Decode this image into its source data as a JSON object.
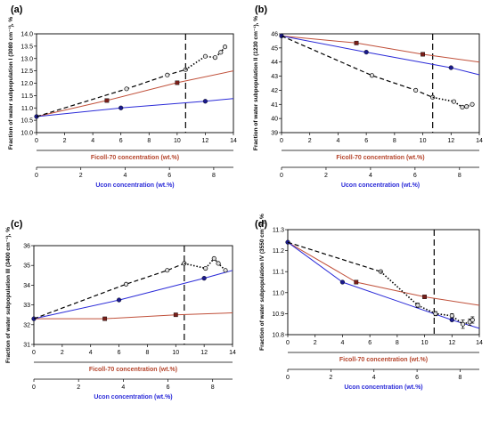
{
  "colors": {
    "ficoll_line": "#c0503a",
    "ficoll_marker": "#7a1f1a",
    "ucon_line": "#2b2bd8",
    "ucon_marker": "#1a1a8c",
    "water_line": "#000000",
    "water_marker_fill": "#e0e0e0",
    "separator": "#000000"
  },
  "chart_data": [
    {
      "panel": "(a)",
      "type": "line",
      "ylabel": "Fraction of water subpopulation I (3080 cm⁻¹), %",
      "xlabel_ficoll": "Ficoll-70 concentration (wt.%)",
      "xlabel_ucon": "Ucon concentration (wt.%)",
      "xlim": [
        0,
        14
      ],
      "ylim": [
        10.0,
        14.0
      ],
      "yticks": [
        10.0,
        10.5,
        11.0,
        11.5,
        12.0,
        12.5,
        13.0,
        13.5,
        14.0
      ],
      "yticks_labels": [
        "10.0",
        "10.5",
        "11.0",
        "11.5",
        "12.0",
        "12.5",
        "13.0",
        "13.5",
        "14.0"
      ],
      "xticks": [
        0,
        2,
        4,
        6,
        8,
        10,
        12,
        14
      ],
      "ucon_ticks": [
        "0",
        "2",
        "4",
        "6",
        "8"
      ],
      "ucon_tick_x": [
        0,
        3.15,
        6.3,
        9.45,
        12.6
      ],
      "vline_x": 10.6,
      "series": [
        {
          "kind": "ficoll",
          "x": [
            0,
            5,
            10,
            14
          ],
          "y": [
            10.65,
            11.3,
            12.02,
            12.5
          ],
          "markers": [
            [
              5,
              11.3
            ],
            [
              10,
              12.02
            ]
          ]
        },
        {
          "kind": "ucon",
          "x": [
            0,
            6,
            12,
            14
          ],
          "y": [
            10.65,
            11.0,
            11.27,
            11.38
          ],
          "markers": [
            [
              0,
              10.65
            ],
            [
              6,
              11.0
            ],
            [
              12,
              11.27
            ]
          ]
        },
        {
          "kind": "water",
          "x": [
            0,
            6.4,
            9.3,
            10.6
          ],
          "y": [
            10.65,
            11.77,
            12.33,
            12.55
          ],
          "style": "dash",
          "markers": [
            [
              6.4,
              11.77
            ],
            [
              9.3,
              12.33
            ],
            [
              10.6,
              12.55
            ]
          ]
        },
        {
          "kind": "water",
          "x": [
            10.6,
            12.0,
            12.7,
            13.1,
            13.4
          ],
          "y": [
            12.55,
            13.09,
            13.04,
            13.25,
            13.47
          ],
          "style": "dot",
          "markers": [
            [
              12.0,
              13.09
            ],
            [
              12.7,
              13.04
            ],
            [
              13.1,
              13.25
            ],
            [
              13.4,
              13.47
            ]
          ]
        }
      ]
    },
    {
      "panel": "(b)",
      "type": "line",
      "ylabel": "Fraction of water subpopulation II (1230 cm⁻¹), %",
      "xlabel_ficoll": "Ficoll-70 concentration (wt.%)",
      "xlabel_ucon": "Ucon concentration (wt.%)",
      "xlim": [
        0,
        14
      ],
      "ylim": [
        39,
        46
      ],
      "yticks": [
        39,
        40,
        41,
        42,
        43,
        44,
        45,
        46
      ],
      "yticks_labels": [
        "39",
        "40",
        "41",
        "42",
        "43",
        "44",
        "45",
        "46"
      ],
      "xticks": [
        0,
        2,
        4,
        6,
        8,
        10,
        12,
        14
      ],
      "ucon_ticks": [
        "0",
        "2",
        "4",
        "6",
        "8"
      ],
      "ucon_tick_x": [
        0,
        3.15,
        6.3,
        9.45,
        12.6
      ],
      "vline_x": 10.7,
      "series": [
        {
          "kind": "ficoll",
          "x": [
            0,
            5.3,
            10,
            14
          ],
          "y": [
            45.85,
            45.35,
            44.55,
            44.0
          ],
          "markers": [
            [
              5.3,
              45.35
            ],
            [
              10,
              44.55
            ]
          ]
        },
        {
          "kind": "ucon",
          "x": [
            0,
            6,
            12,
            14
          ],
          "y": [
            45.85,
            44.7,
            43.6,
            43.1
          ],
          "markers": [
            [
              0,
              45.85
            ],
            [
              6,
              44.7
            ],
            [
              12,
              43.6
            ]
          ]
        },
        {
          "kind": "water",
          "x": [
            0,
            6.4,
            9.5,
            10.7
          ],
          "y": [
            45.85,
            43.05,
            42.0,
            41.5
          ],
          "style": "dash",
          "markers": [
            [
              6.4,
              43.05
            ],
            [
              9.5,
              42.0
            ],
            [
              10.7,
              41.5
            ]
          ]
        },
        {
          "kind": "water",
          "x": [
            10.7,
            12.2,
            12.8,
            13.1,
            13.5
          ],
          "y": [
            41.5,
            41.2,
            40.8,
            40.85,
            41.0
          ],
          "style": "dot",
          "markers": [
            [
              12.2,
              41.2
            ],
            [
              12.8,
              40.8
            ],
            [
              13.1,
              40.85
            ],
            [
              13.5,
              41.0
            ]
          ]
        }
      ]
    },
    {
      "panel": "(c)",
      "type": "line",
      "ylabel": "Fraction of water subpopulation III (3400 cm⁻¹), %",
      "xlabel_ficoll": "Ficoll-70 concentration (wt.%)",
      "xlabel_ucon": "Ucon concentration (wt.%)",
      "xlim": [
        0,
        14
      ],
      "ylim": [
        31,
        36
      ],
      "yticks": [
        31,
        32,
        33,
        34,
        35,
        36
      ],
      "yticks_labels": [
        "31",
        "32",
        "33",
        "34",
        "35",
        "36"
      ],
      "xticks": [
        0,
        2,
        4,
        6,
        8,
        10,
        12,
        14
      ],
      "ucon_ticks": [
        "0",
        "2",
        "4",
        "6",
        "8"
      ],
      "ucon_tick_x": [
        0,
        3.15,
        6.3,
        9.45,
        12.6
      ],
      "vline_x": 10.6,
      "series": [
        {
          "kind": "ficoll",
          "x": [
            0,
            5,
            10,
            14
          ],
          "y": [
            32.3,
            32.3,
            32.5,
            32.6
          ],
          "markers": [
            [
              5,
              32.3
            ],
            [
              10,
              32.5
            ]
          ]
        },
        {
          "kind": "ucon",
          "x": [
            0,
            6,
            12,
            14
          ],
          "y": [
            32.3,
            33.25,
            34.35,
            34.75
          ],
          "markers": [
            [
              0,
              32.3
            ],
            [
              6,
              33.25
            ],
            [
              12,
              34.35
            ]
          ]
        },
        {
          "kind": "water",
          "x": [
            0,
            6.5,
            9.4,
            10.6
          ],
          "y": [
            32.3,
            34.05,
            34.75,
            35.1
          ],
          "style": "dash",
          "markers": [
            [
              6.5,
              34.05
            ],
            [
              9.4,
              34.75
            ],
            [
              10.6,
              35.1
            ]
          ]
        },
        {
          "kind": "water",
          "x": [
            10.6,
            12.1,
            12.7,
            13.0,
            13.5
          ],
          "y": [
            35.1,
            34.85,
            35.35,
            35.1,
            34.75
          ],
          "style": "dot",
          "markers": [
            [
              12.1,
              34.85
            ],
            [
              12.7,
              35.35
            ],
            [
              13.0,
              35.1
            ],
            [
              13.5,
              34.75
            ]
          ]
        }
      ]
    },
    {
      "panel": "(d)",
      "type": "line",
      "ylabel": "Fraction of water subpopulation IV (3550 cm⁻¹), %",
      "xlabel_ficoll": "Ficoll-70 concentration (wt.%)",
      "xlabel_ucon": "Ucon concentration (wt.%)",
      "xlim": [
        0,
        14
      ],
      "ylim": [
        10.8,
        11.3
      ],
      "yticks": [
        10.8,
        10.9,
        11.0,
        11.1,
        11.2,
        11.3
      ],
      "yticks_labels": [
        "10.8",
        "10.9",
        "11.0",
        "11.1",
        "11.2",
        "11.3"
      ],
      "xticks": [
        0,
        2,
        4,
        6,
        8,
        10,
        12,
        14
      ],
      "ucon_ticks": [
        "0",
        "2",
        "4",
        "6",
        "8"
      ],
      "ucon_tick_x": [
        0,
        3.15,
        6.3,
        9.45,
        12.6
      ],
      "vline_x": 10.7,
      "series": [
        {
          "kind": "ficoll",
          "x": [
            0,
            5,
            10,
            14
          ],
          "y": [
            11.24,
            11.05,
            10.98,
            10.94
          ],
          "markers": [
            [
              5,
              11.05
            ],
            [
              10,
              10.98
            ]
          ]
        },
        {
          "kind": "ucon",
          "x": [
            0,
            4,
            8,
            12,
            14
          ],
          "y": [
            11.24,
            11.05,
            10.96,
            10.87,
            10.83
          ],
          "markers": [
            [
              0,
              11.24
            ],
            [
              4,
              11.05
            ],
            [
              12,
              10.87
            ]
          ]
        },
        {
          "kind": "water",
          "x": [
            0,
            6.8
          ],
          "y": [
            11.24,
            11.1
          ],
          "style": "dash",
          "markers": [
            [
              6.8,
              11.1
            ]
          ]
        },
        {
          "kind": "water",
          "x": [
            6.8,
            9.5,
            10.8,
            12.0,
            12.8,
            13.3,
            13.5
          ],
          "y": [
            11.1,
            10.94,
            10.9,
            10.89,
            10.85,
            10.86,
            10.87
          ],
          "style": "dot",
          "markers": [
            [
              9.5,
              10.94
            ],
            [
              10.8,
              10.9
            ],
            [
              12.0,
              10.89
            ],
            [
              12.8,
              10.85
            ],
            [
              13.3,
              10.86
            ],
            [
              13.5,
              10.87
            ]
          ],
          "errors": [
            0.02,
            0.01,
            0.01,
            0.01,
            0.02,
            0.015,
            0.015
          ]
        }
      ]
    }
  ]
}
